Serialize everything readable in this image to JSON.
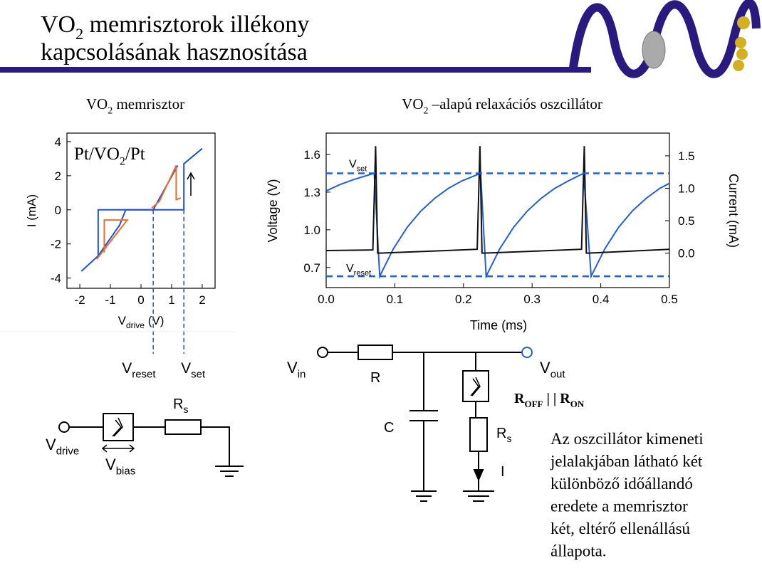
{
  "header": {
    "title": [
      "VO",
      "2",
      " memrisztorok illékony"
    ],
    "title_line2": "kapcsolásának hasznosítása"
  },
  "left_heading": [
    "VO",
    "2",
    " memrisztor"
  ],
  "right_heading": [
    "VO",
    "2",
    " –alapú relaxációs oszcillátor"
  ],
  "iv_chart": {
    "type": "line",
    "xlim": [
      -2.42,
      2.42
    ],
    "ylim": [
      -4.6,
      4.5
    ],
    "xticks": [
      -2,
      -1,
      0,
      1,
      2
    ],
    "yticks": [
      -4,
      -2,
      0,
      2,
      4
    ],
    "ylabel": "I (mA)",
    "xlabel": [
      "V",
      "drive",
      " (V)"
    ],
    "inset": [
      "Pt/VO",
      "2",
      "/Pt"
    ],
    "series": [
      {
        "color": "#1f4fe0",
        "x": [
          -1.95,
          -1.4,
          -1.4,
          1.4,
          1.4,
          2.0
        ],
        "y": [
          -3.6,
          -2.7,
          0,
          0,
          2.7,
          3.6
        ]
      },
      {
        "color": "#1f4fe0",
        "x": [
          1.2,
          0.55,
          0.4,
          -0.5,
          -0.7,
          -1.4
        ],
        "y": [
          2.6,
          0.5,
          0,
          0,
          -0.9,
          -2.7
        ]
      },
      {
        "color": "#e8702a",
        "x": [
          -1.2,
          -1.2,
          -0.45,
          -1.45
        ],
        "y": [
          -2.5,
          -0.6,
          -0.6,
          -2.9
        ]
      },
      {
        "color": "#e8702a",
        "x": [
          0.35,
          0.6,
          1.15,
          1.15,
          1.3
        ],
        "y": [
          0.1,
          0.5,
          2.6,
          0.6,
          0.7
        ]
      }
    ],
    "markers": [
      {
        "x": 0.4,
        "label": [
          "V",
          "reset"
        ]
      },
      {
        "x": 1.4,
        "label": [
          "V",
          "set"
        ]
      }
    ]
  },
  "osc_chart": {
    "type": "line",
    "xlim": [
      0,
      0.5
    ],
    "ylim": [
      0.54,
      1.77
    ],
    "y2lim": [
      -0.53,
      1.85
    ],
    "xticks": [
      {
        "value": 0,
        "label": "0.0"
      },
      0.1,
      0.2,
      0.3,
      0.4,
      0.5
    ],
    "yticks": [
      0.7,
      {
        "value": 1,
        "label": "1.0"
      },
      1.3,
      1.6
    ],
    "y2ticks": [
      {
        "value": 0,
        "label": "0.0"
      },
      0.5,
      {
        "value": 1,
        "label": "1.0"
      },
      1.5
    ],
    "xlabel": "Time (ms)",
    "ylabel": "Voltage (V)",
    "y2label": "Current (mA)",
    "ycolor": "#1f5fd6",
    "series": [
      {
        "color": "#1f5fd6",
        "x": [
          0,
          0.02,
          0.04,
          0.07,
          0.078,
          0.098,
          0.118,
          0.138,
          0.158,
          0.178,
          0.198,
          0.225,
          0.233,
          0.253,
          0.273,
          0.293,
          0.313,
          0.333,
          0.353,
          0.375,
          0.386,
          0.406,
          0.426,
          0.446,
          0.466,
          0.486,
          0.5
        ],
        "y": [
          1.31,
          1.36,
          1.4,
          1.45,
          0.63,
          0.85,
          1.02,
          1.15,
          1.25,
          1.33,
          1.39,
          1.45,
          0.63,
          0.85,
          1.02,
          1.15,
          1.25,
          1.33,
          1.39,
          1.45,
          0.63,
          0.85,
          1.02,
          1.15,
          1.25,
          1.33,
          1.37
        ]
      },
      {
        "color": "#111111",
        "axis": "y2",
        "x": [
          0,
          0.068,
          0.072,
          0.075,
          0.078,
          0.22,
          0.224,
          0.227,
          0.23,
          0.372,
          0.376,
          0.379,
          0.382,
          0.5
        ],
        "y": [
          0.04,
          0.05,
          1.65,
          0.0,
          0.0,
          0.06,
          1.65,
          0.0,
          0.0,
          0.06,
          1.65,
          0.0,
          0.0,
          0.06
        ]
      }
    ],
    "levels": [
      {
        "value": 1.45,
        "label": [
          "V",
          "set"
        ]
      },
      {
        "value": 0.63,
        "label": [
          "V",
          "reset"
        ]
      }
    ]
  },
  "left_circuit": {
    "source": [
      "V",
      "drive"
    ],
    "bias": [
      "V",
      "bias"
    ],
    "resistor": [
      "R",
      "s"
    ]
  },
  "right_circuit": {
    "input": [
      "V",
      "in"
    ],
    "resistor": "R",
    "capacitor": "C",
    "output": [
      "V",
      "out"
    ],
    "memristor": [
      "R",
      "OFF",
      " | | ",
      "R",
      "ON"
    ],
    "series_resistor": [
      "R",
      "s"
    ],
    "current": "I"
  },
  "paragraph": [
    "Az oszcillátor kimeneti",
    "jelalakjában látható két",
    "különböző időállandó",
    "eredete a memrisztor",
    "két, eltérő ellenállású",
    "állapota."
  ]
}
